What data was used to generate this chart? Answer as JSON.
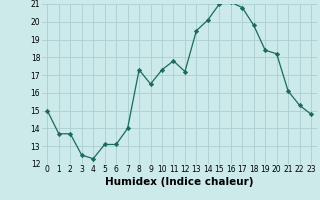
{
  "x": [
    0,
    1,
    2,
    3,
    4,
    5,
    6,
    7,
    8,
    9,
    10,
    11,
    12,
    13,
    14,
    15,
    16,
    17,
    18,
    19,
    20,
    21,
    22,
    23
  ],
  "y": [
    15.0,
    13.7,
    13.7,
    12.5,
    12.3,
    13.1,
    13.1,
    14.0,
    17.3,
    16.5,
    17.3,
    17.8,
    17.2,
    19.5,
    20.1,
    21.0,
    21.1,
    20.8,
    19.8,
    18.4,
    18.2,
    16.1,
    15.3,
    14.8
  ],
  "xlabel": "Humidex (Indice chaleur)",
  "ylim": [
    12,
    21
  ],
  "xlim_min": -0.5,
  "xlim_max": 23.5,
  "yticks": [
    12,
    13,
    14,
    15,
    16,
    17,
    18,
    19,
    20,
    21
  ],
  "xticks": [
    0,
    1,
    2,
    3,
    4,
    5,
    6,
    7,
    8,
    9,
    10,
    11,
    12,
    13,
    14,
    15,
    16,
    17,
    18,
    19,
    20,
    21,
    22,
    23
  ],
  "line_color": "#1a6b5a",
  "marker": "D",
  "marker_size": 2.2,
  "bg_color": "#cceaea",
  "grid_color": "#aacfcf",
  "xlabel_fontsize": 7.5,
  "tick_fontsize": 5.5
}
